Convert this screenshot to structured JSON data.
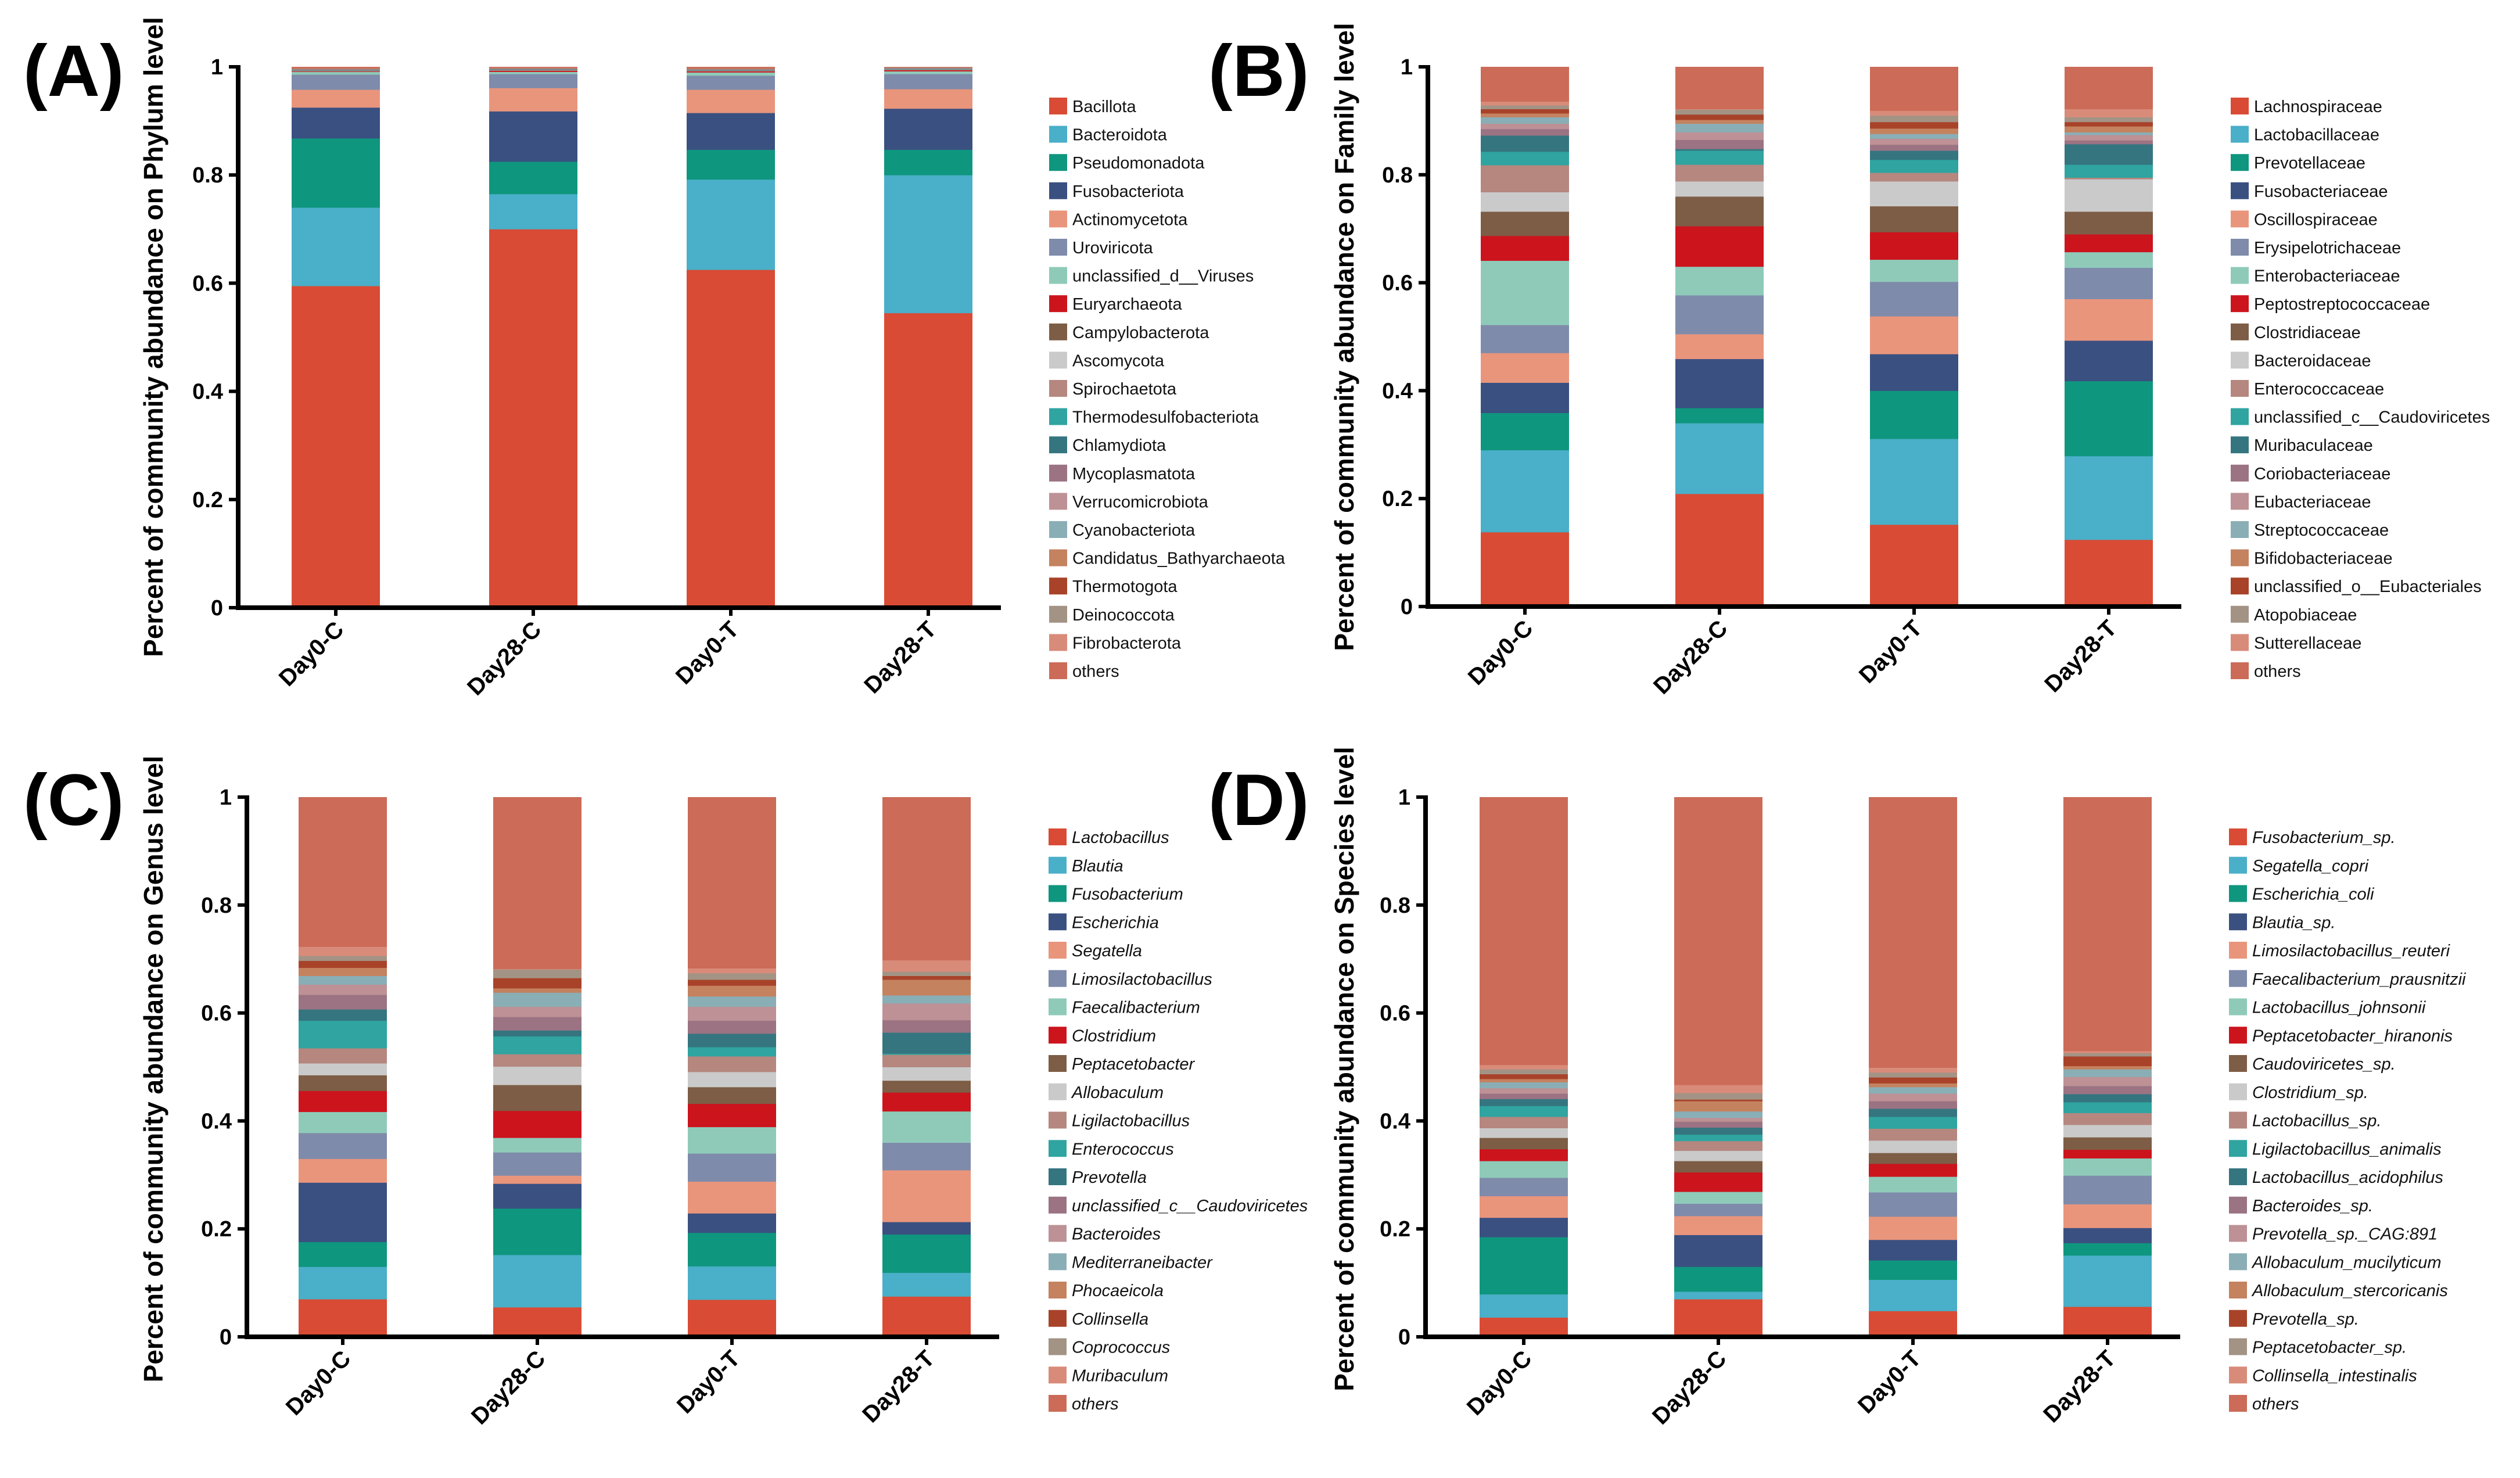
{
  "palette": [
    "#d94b35",
    "#4aafc8",
    "#0f967e",
    "#3a5081",
    "#e9957c",
    "#7f8bab",
    "#8fcab9",
    "#cc141d",
    "#7d5d45",
    "#cacaca",
    "#b5877f",
    "#2fa4a0",
    "#357580",
    "#9b7383",
    "#bd9195",
    "#8aaeb6",
    "#c4825f",
    "#a8432a",
    "#a39385",
    "#d98b79",
    "#cb6b58"
  ],
  "chart_data": [
    {
      "panel": "(A)",
      "type": "bar",
      "stacked": true,
      "ylabel": "Percent of community abundance on Phylum level",
      "ylim": [
        0,
        1
      ],
      "yticks": [
        "0",
        "0.2",
        "0.4",
        "0.6",
        "0.8",
        "1"
      ],
      "categories": [
        "Day0-C",
        "Day28-C",
        "Day0-T",
        "Day28-T"
      ],
      "legend_italic": false,
      "legend_position": "right",
      "series": [
        {
          "name": "Bacillota",
          "values": [
            0.595,
            0.7,
            0.625,
            0.545
          ]
        },
        {
          "name": "Bacteroidota",
          "values": [
            0.145,
            0.065,
            0.167,
            0.255
          ]
        },
        {
          "name": "Pseudomonadota",
          "values": [
            0.128,
            0.06,
            0.055,
            0.047
          ]
        },
        {
          "name": "Fusobacteriota",
          "values": [
            0.057,
            0.093,
            0.068,
            0.076
          ]
        },
        {
          "name": "Actinomycetota",
          "values": [
            0.033,
            0.043,
            0.043,
            0.036
          ]
        },
        {
          "name": "Uroviricota",
          "values": [
            0.028,
            0.026,
            0.026,
            0.028
          ]
        },
        {
          "name": "unclassified_d__Viruses",
          "values": [
            0.005,
            0.004,
            0.006,
            0.005
          ]
        },
        {
          "name": "Euryarchaeota",
          "values": [
            0.001,
            0.002,
            0.002,
            0.002
          ]
        },
        {
          "name": "Campylobacterota",
          "values": [
            0.0005,
            0.0005,
            0.0005,
            0.0005
          ]
        },
        {
          "name": "Ascomycota",
          "values": [
            0.0005,
            0.0005,
            0.0005,
            0.0005
          ]
        },
        {
          "name": "Spirochaetota",
          "values": [
            0.0005,
            0.0005,
            0.0005,
            0.0005
          ]
        },
        {
          "name": "Thermodesulfobacteriota",
          "values": [
            0.0005,
            0.0005,
            0.0005,
            0.0005
          ]
        },
        {
          "name": "Chlamydiota",
          "values": [
            0.0005,
            0.0005,
            0.0005,
            0.0005
          ]
        },
        {
          "name": "Mycoplasmatota",
          "values": [
            0.0005,
            0.0005,
            0.0005,
            0.0005
          ]
        },
        {
          "name": "Verrucomicrobiota",
          "values": [
            0.0005,
            0.0005,
            0.0005,
            0.0005
          ]
        },
        {
          "name": "Cyanobacteriota",
          "values": [
            0.0005,
            0.0005,
            0.0005,
            0.0005
          ]
        },
        {
          "name": "Candidatus_Bathyarchaeota",
          "values": [
            0.0005,
            0.0005,
            0.0005,
            0.0005
          ]
        },
        {
          "name": "Thermotogota",
          "values": [
            0.0005,
            0.0005,
            0.0005,
            0.0005
          ]
        },
        {
          "name": "Deinococcota",
          "values": [
            0.0005,
            0.0005,
            0.0005,
            0.0005
          ]
        },
        {
          "name": "Fibrobacterota",
          "values": [
            0.0005,
            0.0005,
            0.0005,
            0.0005
          ]
        },
        {
          "name": "others",
          "values": [
            0.002,
            0.001,
            0.002,
            0.0
          ]
        }
      ]
    },
    {
      "panel": "(B)",
      "type": "bar",
      "stacked": true,
      "ylabel": "Percent of community abundance on Family level",
      "ylim": [
        0,
        1
      ],
      "yticks": [
        "0",
        "0.2",
        "0.4",
        "0.6",
        "0.8",
        "1"
      ],
      "categories": [
        "Day0-C",
        "Day28-C",
        "Day0-T",
        "Day28-T"
      ],
      "legend_italic": false,
      "legend_position": "right",
      "series": [
        {
          "name": "Lachnospiraceae",
          "values": [
            0.138,
            0.209,
            0.152,
            0.124
          ]
        },
        {
          "name": "Lactobacillaceae",
          "values": [
            0.152,
            0.131,
            0.159,
            0.155
          ]
        },
        {
          "name": "Prevotellaceae",
          "values": [
            0.069,
            0.028,
            0.089,
            0.139
          ]
        },
        {
          "name": "Fusobacteriaceae",
          "values": [
            0.056,
            0.091,
            0.068,
            0.075
          ]
        },
        {
          "name": "Oscillospiraceae",
          "values": [
            0.055,
            0.046,
            0.07,
            0.077
          ]
        },
        {
          "name": "Erysipelotrichaceae",
          "values": [
            0.052,
            0.072,
            0.064,
            0.058
          ]
        },
        {
          "name": "Enterobacteriaceae",
          "values": [
            0.119,
            0.053,
            0.041,
            0.029
          ]
        },
        {
          "name": "Peptostreptococcaceae",
          "values": [
            0.046,
            0.075,
            0.051,
            0.033
          ]
        },
        {
          "name": "Clostridiaceae",
          "values": [
            0.045,
            0.055,
            0.048,
            0.042
          ]
        },
        {
          "name": "Bacteroidaceae",
          "values": [
            0.036,
            0.028,
            0.046,
            0.06
          ]
        },
        {
          "name": "Enterococcaceae",
          "values": [
            0.05,
            0.031,
            0.016,
            0.003
          ]
        },
        {
          "name": "unclassified_c__Caudoviricetes",
          "values": [
            0.025,
            0.026,
            0.024,
            0.024
          ]
        },
        {
          "name": "Muribaculaceae",
          "values": [
            0.03,
            0.003,
            0.017,
            0.038
          ]
        },
        {
          "name": "Coriobacteriaceae",
          "values": [
            0.012,
            0.017,
            0.011,
            0.007
          ]
        },
        {
          "name": "Eubacteriaceae",
          "values": [
            0.01,
            0.014,
            0.011,
            0.01
          ]
        },
        {
          "name": "Streptococcaceae",
          "values": [
            0.012,
            0.016,
            0.009,
            0.005
          ]
        },
        {
          "name": "Bifidobacteriaceae",
          "values": [
            0.007,
            0.007,
            0.01,
            0.011
          ]
        },
        {
          "name": "unclassified_o__Eubacteriales",
          "values": [
            0.008,
            0.01,
            0.012,
            0.008
          ]
        },
        {
          "name": "Atopobiaceae",
          "values": [
            0.007,
            0.009,
            0.012,
            0.009
          ]
        },
        {
          "name": "Sutterellaceae",
          "values": [
            0.007,
            0.001,
            0.009,
            0.015
          ]
        },
        {
          "name": "others",
          "values": [
            0.064,
            0.078,
            0.081,
            0.078
          ]
        }
      ]
    },
    {
      "panel": "(C)",
      "type": "bar",
      "stacked": true,
      "ylabel": "Percent of community abundance on Genus level",
      "ylim": [
        0,
        1
      ],
      "yticks": [
        "0",
        "0.2",
        "0.4",
        "0.6",
        "0.8",
        "1"
      ],
      "categories": [
        "Day0-C",
        "Day28-C",
        "Day0-T",
        "Day28-T"
      ],
      "legend_italic": true,
      "legend_position": "right",
      "series": [
        {
          "name": "Lactobacillus",
          "values": [
            0.07,
            0.055,
            0.069,
            0.075
          ]
        },
        {
          "name": "Blautia",
          "values": [
            0.06,
            0.097,
            0.062,
            0.044
          ]
        },
        {
          "name": "Fusobacterium",
          "values": [
            0.046,
            0.086,
            0.062,
            0.071
          ]
        },
        {
          "name": "Escherichia",
          "values": [
            0.11,
            0.046,
            0.036,
            0.023
          ]
        },
        {
          "name": "Segatella",
          "values": [
            0.044,
            0.015,
            0.059,
            0.096
          ]
        },
        {
          "name": "Limosilactobacillus",
          "values": [
            0.048,
            0.043,
            0.052,
            0.051
          ]
        },
        {
          "name": "Faecalibacterium",
          "values": [
            0.039,
            0.027,
            0.049,
            0.058
          ]
        },
        {
          "name": "Clostridium",
          "values": [
            0.039,
            0.05,
            0.043,
            0.035
          ]
        },
        {
          "name": "Peptacetobacter",
          "values": [
            0.029,
            0.048,
            0.031,
            0.022
          ]
        },
        {
          "name": "Allobaculum",
          "values": [
            0.022,
            0.034,
            0.028,
            0.025
          ]
        },
        {
          "name": "Ligilactobacillus",
          "values": [
            0.028,
            0.023,
            0.029,
            0.023
          ]
        },
        {
          "name": "Enterococcus",
          "values": [
            0.051,
            0.033,
            0.017,
            0.002
          ]
        },
        {
          "name": "Prevotella",
          "values": [
            0.021,
            0.011,
            0.025,
            0.039
          ]
        },
        {
          "name": "unclassified_c__Caudoviricetes",
          "values": [
            0.027,
            0.025,
            0.024,
            0.023
          ]
        },
        {
          "name": "Bacteroides",
          "values": [
            0.019,
            0.019,
            0.026,
            0.031
          ]
        },
        {
          "name": "Mediterraneibacter",
          "values": [
            0.016,
            0.026,
            0.019,
            0.015
          ]
        },
        {
          "name": "Phocaeicola",
          "values": [
            0.015,
            0.008,
            0.02,
            0.029
          ]
        },
        {
          "name": "Collinsella",
          "values": [
            0.013,
            0.019,
            0.011,
            0.007
          ]
        },
        {
          "name": "Coprococcus",
          "values": [
            0.009,
            0.016,
            0.012,
            0.008
          ]
        },
        {
          "name": "Muribaculum",
          "values": [
            0.017,
            0.001,
            0.009,
            0.021
          ]
        },
        {
          "name": "others",
          "values": [
            0.277,
            0.318,
            0.317,
            0.302
          ]
        }
      ]
    },
    {
      "panel": "(D)",
      "type": "bar",
      "stacked": true,
      "ylabel": "Percent of community abundance on Species level",
      "ylim": [
        0,
        1
      ],
      "yticks": [
        "0",
        "0.2",
        "0.4",
        "0.6",
        "0.8",
        "1"
      ],
      "categories": [
        "Day0-C",
        "Day28-C",
        "Day0-T",
        "Day28-T"
      ],
      "legend_italic": true,
      "legend_position": "right",
      "series": [
        {
          "name": "Fusobacterium_sp.",
          "values": [
            0.036,
            0.07,
            0.048,
            0.056
          ]
        },
        {
          "name": "Segatella_copri",
          "values": [
            0.043,
            0.014,
            0.058,
            0.095
          ]
        },
        {
          "name": "Escherichia_coli",
          "values": [
            0.106,
            0.046,
            0.036,
            0.023
          ]
        },
        {
          "name": "Blautia_sp.",
          "values": [
            0.036,
            0.059,
            0.038,
            0.028
          ]
        },
        {
          "name": "Limosilactobacillus_reuteri",
          "values": [
            0.04,
            0.035,
            0.043,
            0.044
          ]
        },
        {
          "name": "Faecalibacterium_prausnitzii",
          "values": [
            0.034,
            0.023,
            0.045,
            0.053
          ]
        },
        {
          "name": "Lactobacillus_johnsonii",
          "values": [
            0.031,
            0.022,
            0.029,
            0.032
          ]
        },
        {
          "name": "Peptacetobacter_hiranonis",
          "values": [
            0.022,
            0.036,
            0.024,
            0.016
          ]
        },
        {
          "name": "Caudoviricetes_sp.",
          "values": [
            0.021,
            0.021,
            0.02,
            0.023
          ]
        },
        {
          "name": "Clostridium_sp.",
          "values": [
            0.018,
            0.019,
            0.023,
            0.023
          ]
        },
        {
          "name": "Lactobacillus_sp.",
          "values": [
            0.021,
            0.018,
            0.022,
            0.022
          ]
        },
        {
          "name": "Ligilactobacillus_animalis",
          "values": [
            0.02,
            0.012,
            0.022,
            0.02
          ]
        },
        {
          "name": "Lactobacillus_acidophilus",
          "values": [
            0.013,
            0.013,
            0.015,
            0.015
          ]
        },
        {
          "name": "Bacteroides_sp.",
          "values": [
            0.01,
            0.011,
            0.014,
            0.015
          ]
        },
        {
          "name": "Prevotella_sp._CAG:891",
          "values": [
            0.01,
            0.007,
            0.014,
            0.017
          ]
        },
        {
          "name": "Allobaculum_mucilyticum",
          "values": [
            0.011,
            0.012,
            0.012,
            0.014
          ]
        },
        {
          "name": "Allobaculum_stercoricanis",
          "values": [
            0.006,
            0.019,
            0.007,
            0.006
          ]
        },
        {
          "name": "Prevotella_sp.",
          "values": [
            0.009,
            0.003,
            0.011,
            0.018
          ]
        },
        {
          "name": "Peptacetobacter_sp.",
          "values": [
            0.009,
            0.012,
            0.009,
            0.006
          ]
        },
        {
          "name": "Collinsella_intestinalis",
          "values": [
            0.008,
            0.015,
            0.009,
            0.004
          ]
        },
        {
          "name": "others",
          "values": [
            0.496,
            0.533,
            0.501,
            0.47
          ]
        }
      ]
    }
  ]
}
